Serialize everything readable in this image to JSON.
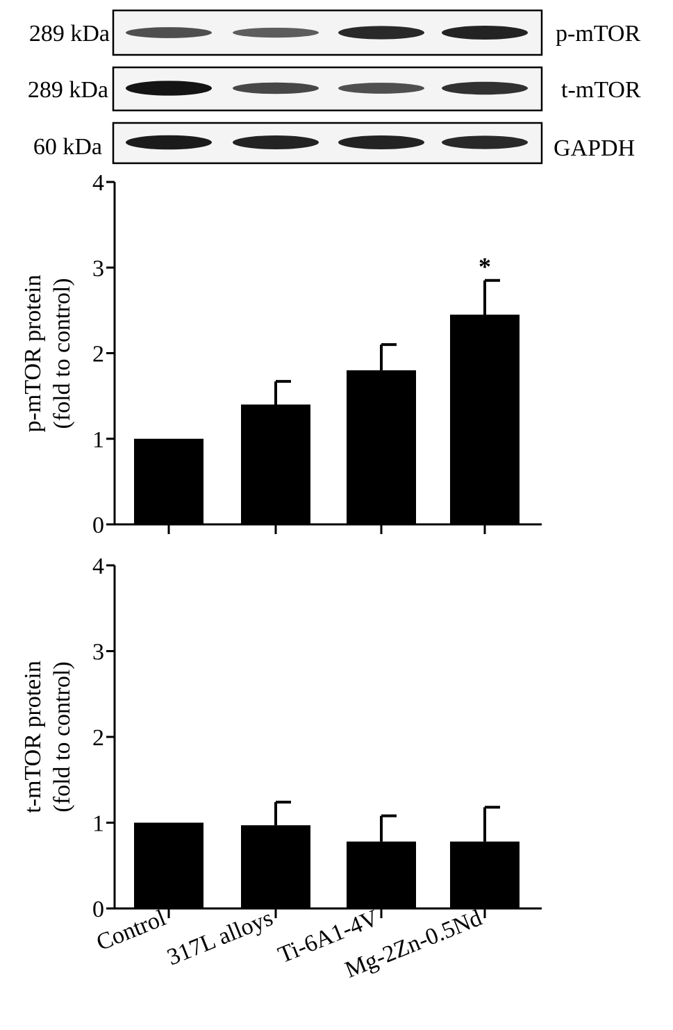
{
  "blot": {
    "rows": [
      {
        "mw": "289 kDa",
        "protein": "p-mTOR",
        "bands": [
          0.55,
          0.45,
          0.8,
          0.85
        ]
      },
      {
        "mw": "289 kDa",
        "protein": "t-mTOR",
        "bands": [
          0.95,
          0.6,
          0.55,
          0.75
        ]
      },
      {
        "mw": "60 kDa",
        "protein": "GAPDH",
        "bands": [
          0.9,
          0.85,
          0.85,
          0.8
        ]
      }
    ]
  },
  "chart_data": [
    {
      "type": "bar",
      "categories": [
        "Control",
        "317L alloys",
        "Ti-6A1-4V",
        "Mg-2Zn-0.5Nd"
      ],
      "values": [
        1.0,
        1.4,
        1.8,
        2.45
      ],
      "errors": [
        0,
        0.27,
        0.3,
        0.4
      ],
      "ylabel_line1": "p-mTOR protein",
      "ylabel_line2": "(fold to control)",
      "yticks": [
        "0",
        "1",
        "2",
        "3",
        "4"
      ],
      "ylim": [
        0,
        4
      ],
      "significance": [
        "",
        "",
        "",
        "*"
      ]
    },
    {
      "type": "bar",
      "categories": [
        "Control",
        "317L alloys",
        "Ti-6A1-4V",
        "Mg-2Zn-0.5Nd"
      ],
      "values": [
        1.0,
        0.97,
        0.78,
        0.78
      ],
      "errors": [
        0,
        0.27,
        0.3,
        0.4
      ],
      "ylabel_line1": "t-mTOR protein",
      "ylabel_line2": "(fold to control)",
      "yticks": [
        "0",
        "1",
        "2",
        "3",
        "4"
      ],
      "ylim": [
        0,
        4
      ]
    }
  ],
  "colors": {
    "bar": "#000000",
    "axis": "#000000"
  }
}
